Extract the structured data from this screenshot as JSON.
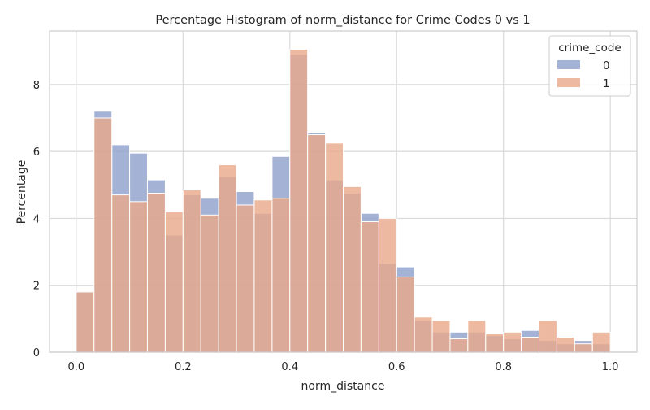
{
  "chart_data": {
    "type": "bar",
    "title": "Percentage Histogram of norm_distance for Crime Codes 0 vs 1",
    "xlabel": "norm_distance",
    "ylabel": "Percentage",
    "xlim": [
      -0.05,
      1.05
    ],
    "ylim": [
      0,
      9.6
    ],
    "xticks": [
      0.0,
      0.2,
      0.4,
      0.6,
      0.8,
      1.0
    ],
    "xtick_labels": [
      "0.0",
      "0.2",
      "0.4",
      "0.6",
      "0.8",
      "1.0"
    ],
    "yticks": [
      0,
      2,
      4,
      6,
      8
    ],
    "ytick_labels": [
      "0",
      "2",
      "4",
      "6",
      "8"
    ],
    "grid": true,
    "bin_edges": [
      0.0,
      0.0333,
      0.0667,
      0.1,
      0.1333,
      0.1667,
      0.2,
      0.2333,
      0.2667,
      0.3,
      0.3333,
      0.3667,
      0.4,
      0.4333,
      0.4667,
      0.5,
      0.5333,
      0.5667,
      0.6,
      0.6333,
      0.6667,
      0.7,
      0.7333,
      0.7667,
      0.8,
      0.8333,
      0.8667,
      0.9,
      0.9333,
      0.9667,
      1.0
    ],
    "legend": {
      "title": "crime_code",
      "placement": "top-right"
    },
    "series": [
      {
        "name": "0",
        "color": "#8da0cb",
        "values": [
          1.8,
          7.2,
          6.2,
          5.95,
          5.15,
          3.5,
          4.7,
          4.6,
          5.25,
          4.8,
          4.15,
          5.85,
          8.9,
          6.55,
          5.15,
          4.75,
          4.15,
          2.65,
          2.55,
          0.95,
          0.6,
          0.6,
          0.6,
          0.5,
          0.4,
          0.65,
          0.35,
          0.25,
          0.35,
          0.25
        ]
      },
      {
        "name": "1",
        "color": "#e9a888",
        "values": [
          1.8,
          7.0,
          4.7,
          4.5,
          4.75,
          4.2,
          4.85,
          4.1,
          5.6,
          4.4,
          4.55,
          4.6,
          9.05,
          6.5,
          6.25,
          4.95,
          3.9,
          4.0,
          2.25,
          1.05,
          0.95,
          0.4,
          0.95,
          0.55,
          0.6,
          0.45,
          0.95,
          0.45,
          0.25,
          0.6
        ]
      }
    ]
  }
}
